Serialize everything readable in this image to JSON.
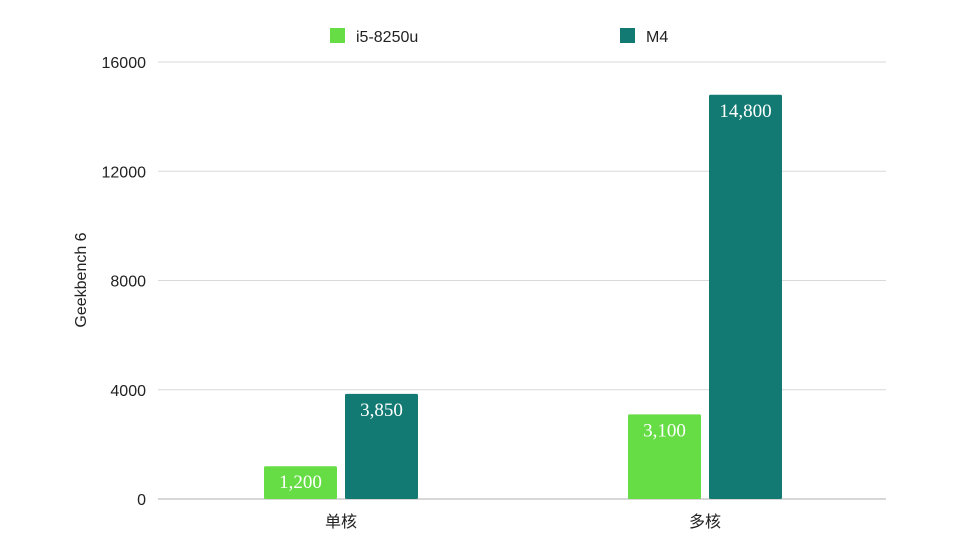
{
  "chart_data": {
    "type": "bar",
    "title": "",
    "xlabel": "",
    "ylabel": "Geekbench 6",
    "categories": [
      "单核",
      "多核"
    ],
    "series": [
      {
        "name": "i5-8250u",
        "color": "#66dd44",
        "values": [
          1200,
          3100
        ],
        "labels": [
          "1,200",
          "3,100"
        ]
      },
      {
        "name": "M4",
        "color": "#127a73",
        "values": [
          3850,
          14800
        ],
        "labels": [
          "3,850",
          "14,800"
        ]
      }
    ],
    "ylim": [
      0,
      16000
    ],
    "yticks": [
      0,
      4000,
      8000,
      12000,
      16000
    ],
    "ytick_labels": [
      "0",
      "4000",
      "8000",
      "12000",
      "16000"
    ],
    "grid": true,
    "legend_position": "top-center"
  }
}
